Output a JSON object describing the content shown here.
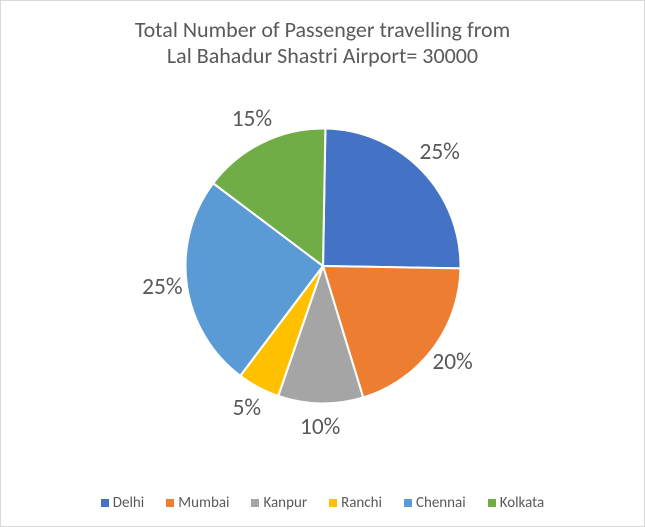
{
  "chart": {
    "type": "pie",
    "title_lines": [
      "Total Number of Passenger travelling from",
      "Lal Bahadur Shastri Airport= 30000"
    ],
    "title_fontsize": 22,
    "title_color": "#595959",
    "background_color": "#ffffff",
    "border_color": "#d9d9d9",
    "start_angle_deg": -89,
    "direction": "clockwise",
    "label_fontsize": 17,
    "label_color": "#595959",
    "label_offset_ratio": 1.18,
    "legend_fontsize": 15,
    "legend_color": "#595959",
    "slices": [
      {
        "name": "Delhi",
        "percent": 25,
        "label": "25%",
        "color": "#4472c4"
      },
      {
        "name": "Mumbai",
        "percent": 20,
        "label": "20%",
        "color": "#ed7d31"
      },
      {
        "name": "Kanpur",
        "percent": 10,
        "label": "10%",
        "color": "#a5a5a5"
      },
      {
        "name": "Ranchi",
        "percent": 5,
        "label": "5%",
        "color": "#ffc000"
      },
      {
        "name": "Chennai",
        "percent": 25,
        "label": "25%",
        "color": "#5b9bd5"
      },
      {
        "name": "Kolkata",
        "percent": 15,
        "label": "15%",
        "color": "#70ad47"
      }
    ]
  }
}
